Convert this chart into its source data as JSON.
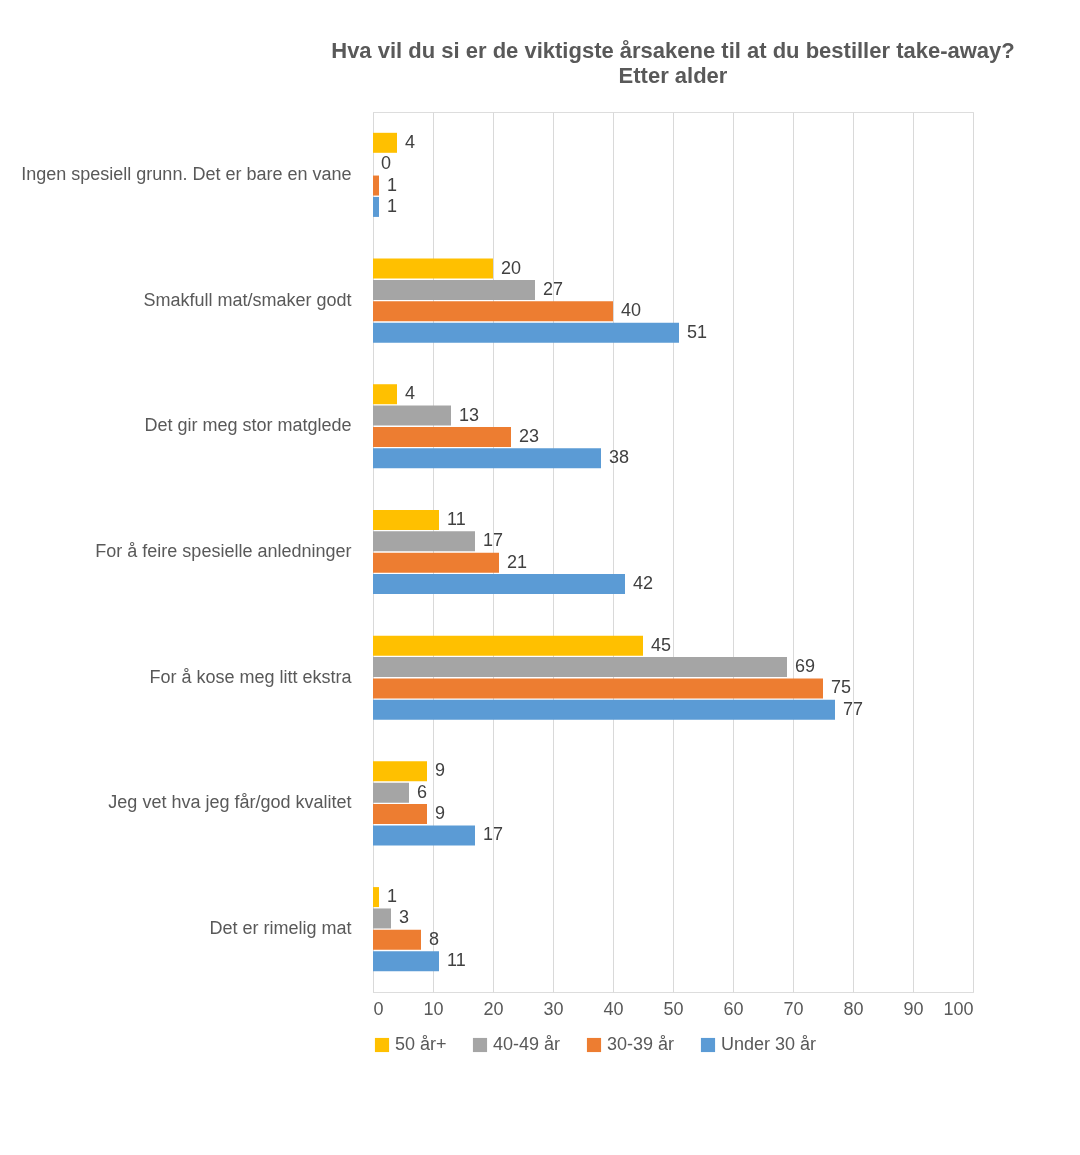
{
  "chart_data": {
    "type": "bar",
    "orientation": "horizontal",
    "title": "Hva vil du si er de viktigste årsakene til at du bestiller take-away?",
    "subtitle": "Etter alder",
    "categories": [
      "Ingen spesiell grunn. Det er bare en vane",
      "Smakfull mat/smaker godt",
      "Det gir meg stor matglede",
      "For å feire spesielle anledninger",
      "For å kose meg litt ekstra",
      "Jeg vet hva jeg får/god kvalitet",
      "Det er rimelig mat"
    ],
    "series": [
      {
        "name": "50 år+",
        "color": "#ffc000",
        "values": [
          4,
          20,
          4,
          11,
          45,
          9,
          1
        ]
      },
      {
        "name": "40-49 år",
        "color": "#a5a5a5",
        "values": [
          0,
          27,
          13,
          17,
          69,
          6,
          3
        ]
      },
      {
        "name": "30-39 år",
        "color": "#ed7d31",
        "values": [
          1,
          40,
          23,
          21,
          75,
          9,
          8
        ]
      },
      {
        "name": "Under 30 år",
        "color": "#5b9bd5",
        "values": [
          1,
          51,
          38,
          42,
          77,
          17,
          11
        ]
      }
    ],
    "xlim": [
      0,
      100
    ],
    "xticks": [
      0,
      10,
      20,
      30,
      40,
      50,
      60,
      70,
      80,
      90,
      100
    ],
    "grid": "x",
    "legend": "bottom",
    "data_labels": true
  }
}
